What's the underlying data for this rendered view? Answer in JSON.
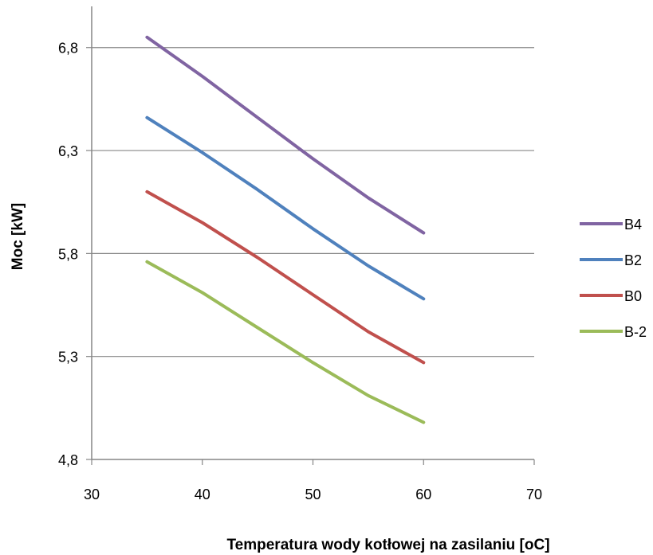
{
  "chart_data": {
    "type": "line",
    "title": "",
    "xlabel": "Temperatura wody kotłowej na zasilaniu [oC]",
    "ylabel": "Moc [kW]",
    "xlim": [
      30,
      70
    ],
    "ylim": [
      4.8,
      7.0
    ],
    "x_ticks": [
      30,
      40,
      50,
      60,
      70
    ],
    "x_tick_labels": [
      "30",
      "40",
      "50",
      "60",
      "70"
    ],
    "y_ticks": [
      4.8,
      5.3,
      5.8,
      6.3,
      6.8
    ],
    "y_tick_labels": [
      "4,8",
      "5,3",
      "5,8",
      "6,3",
      "6,8"
    ],
    "grid": "horizontal",
    "legend_position": "right",
    "series": [
      {
        "name": "B4",
        "color": "#8064A2",
        "x": [
          35,
          40,
          45,
          50,
          55,
          60
        ],
        "values": [
          6.85,
          6.66,
          6.46,
          6.26,
          6.07,
          5.9
        ]
      },
      {
        "name": "B2",
        "color": "#4F81BD",
        "x": [
          35,
          40,
          45,
          50,
          55,
          60
        ],
        "values": [
          6.46,
          6.29,
          6.11,
          5.92,
          5.74,
          5.58
        ]
      },
      {
        "name": "B0",
        "color": "#C0504D",
        "x": [
          35,
          40,
          45,
          50,
          55,
          60
        ],
        "values": [
          6.1,
          5.95,
          5.78,
          5.6,
          5.42,
          5.27
        ]
      },
      {
        "name": "B-2",
        "color": "#9BBB59",
        "x": [
          35,
          40,
          45,
          50,
          55,
          60
        ],
        "values": [
          5.76,
          5.61,
          5.44,
          5.27,
          5.11,
          4.98
        ]
      }
    ]
  }
}
